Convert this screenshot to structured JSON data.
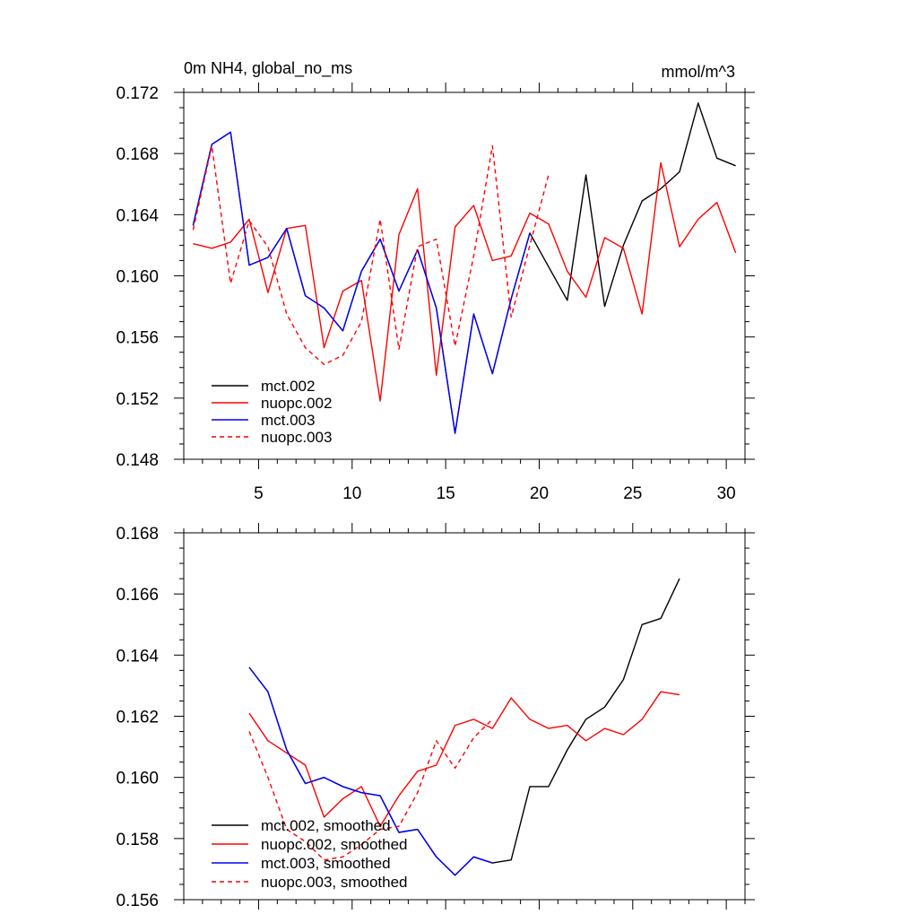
{
  "chart_data": [
    {
      "type": "line",
      "title": "0m NH4, global_no_ms",
      "units_label": "mmol/m^3",
      "xlabel": "",
      "ylabel": "",
      "xlim": [
        1,
        31
      ],
      "ylim": [
        0.148,
        0.172
      ],
      "yticks": [
        0.148,
        0.152,
        0.156,
        0.16,
        0.164,
        0.168,
        0.172
      ],
      "ytick_labels": [
        "0.148",
        "0.152",
        "0.156",
        "0.160",
        "0.164",
        "0.168",
        "0.172"
      ],
      "xticks": [
        5,
        10,
        15,
        20,
        25,
        30
      ],
      "xtick_labels": [
        "5",
        "10",
        "15",
        "20",
        "25",
        "30"
      ],
      "grid": false,
      "legend_position": "bottom-left",
      "series": [
        {
          "name": "mct.002",
          "color": "#000000",
          "dash": "solid",
          "x": [
            1.5,
            2.5,
            3.5,
            4.5,
            5.5,
            6.5,
            7.5,
            8.5,
            9.5,
            10.5,
            11.5,
            12.5,
            13.5,
            14.5,
            15.5,
            16.5,
            17.5,
            18.5,
            19.5,
            20.5,
            21.5,
            22.5,
            23.5,
            24.5,
            25.5,
            26.5,
            27.5,
            28.5,
            29.5,
            30.5
          ],
          "values": [
            0.1633,
            0.1686,
            0.1694,
            0.1607,
            0.1612,
            0.1631,
            0.1587,
            0.1579,
            0.1564,
            0.1603,
            0.1624,
            0.159,
            0.1617,
            0.1579,
            0.1497,
            0.1575,
            0.1536,
            0.1585,
            0.1628,
            0.1606,
            0.1584,
            0.1666,
            0.158,
            0.162,
            0.1649,
            0.1657,
            0.1668,
            0.1713,
            0.1677,
            0.1672
          ]
        },
        {
          "name": "nuopc.002",
          "color": "#ff0000",
          "dash": "solid",
          "x": [
            1.5,
            2.5,
            3.5,
            4.5,
            5.5,
            6.5,
            7.5,
            8.5,
            9.5,
            10.5,
            11.5,
            12.5,
            13.5,
            14.5,
            15.5,
            16.5,
            17.5,
            18.5,
            19.5,
            20.5,
            21.5,
            22.5,
            23.5,
            24.5,
            25.5,
            26.5,
            27.5,
            28.5,
            29.5,
            30.5
          ],
          "values": [
            0.1621,
            0.1618,
            0.1622,
            0.1637,
            0.1589,
            0.1631,
            0.1633,
            0.1553,
            0.159,
            0.1597,
            0.1518,
            0.1627,
            0.1657,
            0.1535,
            0.1632,
            0.1646,
            0.161,
            0.1613,
            0.1641,
            0.1634,
            0.1603,
            0.1586,
            0.1625,
            0.1618,
            0.1575,
            0.1674,
            0.1619,
            0.1637,
            0.1648,
            0.1615
          ]
        },
        {
          "name": "mct.003",
          "color": "#0000ff",
          "dash": "solid",
          "x": [
            1.5,
            2.5,
            3.5,
            4.5,
            5.5,
            6.5,
            7.5,
            8.5,
            9.5,
            10.5,
            11.5,
            12.5,
            13.5,
            14.5,
            15.5,
            16.5,
            17.5,
            18.5,
            19.5
          ],
          "values": [
            0.1633,
            0.1686,
            0.1694,
            0.1607,
            0.1612,
            0.1631,
            0.1587,
            0.1579,
            0.1564,
            0.1603,
            0.1624,
            0.159,
            0.1617,
            0.1579,
            0.1497,
            0.1575,
            0.1536,
            0.1585,
            0.1628
          ]
        },
        {
          "name": "nuopc.003",
          "color": "#ff0000",
          "dash": "dashed",
          "x": [
            1.5,
            2.5,
            3.5,
            4.5,
            5.5,
            6.5,
            7.5,
            8.5,
            9.5,
            10.5,
            11.5,
            12.5,
            13.5,
            14.5,
            15.5,
            16.5,
            17.5,
            18.5,
            19.5,
            20.5
          ],
          "values": [
            0.163,
            0.1685,
            0.1595,
            0.1636,
            0.1619,
            0.1575,
            0.1553,
            0.1542,
            0.1548,
            0.157,
            0.1637,
            0.1552,
            0.1619,
            0.1624,
            0.1554,
            0.1613,
            0.1685,
            0.1573,
            0.162,
            0.1666
          ]
        }
      ]
    },
    {
      "type": "line",
      "title": "",
      "xlabel": "",
      "ylabel": "",
      "xlim": [
        1,
        31
      ],
      "ylim": [
        0.156,
        0.168
      ],
      "yticks": [
        0.156,
        0.158,
        0.16,
        0.162,
        0.164,
        0.166,
        0.168
      ],
      "ytick_labels": [
        "0.156",
        "0.158",
        "0.160",
        "0.162",
        "0.164",
        "0.166",
        "0.168"
      ],
      "xticks": [
        5,
        10,
        15,
        20,
        25,
        30
      ],
      "xtick_labels": [],
      "grid": false,
      "legend_position": "bottom-left",
      "series": [
        {
          "name": "mct.002, smoothed",
          "color": "#000000",
          "dash": "solid",
          "x": [
            4.5,
            5.5,
            6.5,
            7.5,
            8.5,
            9.5,
            10.5,
            11.5,
            12.5,
            13.5,
            14.5,
            15.5,
            16.5,
            17.5,
            18.5,
            19.5,
            20.5,
            21.5,
            22.5,
            23.5,
            24.5,
            25.5,
            26.5,
            27.5
          ],
          "values": [
            0.1636,
            0.1628,
            0.1609,
            0.1598,
            0.16,
            0.1597,
            0.1595,
            0.1594,
            0.1582,
            0.1583,
            0.1574,
            0.1568,
            0.1574,
            0.1572,
            0.1573,
            0.1597,
            0.1597,
            0.1609,
            0.1619,
            0.1623,
            0.1632,
            0.165,
            0.1652,
            0.1665
          ]
        },
        {
          "name": "nuopc.002, smoothed",
          "color": "#ff0000",
          "dash": "solid",
          "x": [
            4.5,
            5.5,
            6.5,
            7.5,
            8.5,
            9.5,
            10.5,
            11.5,
            12.5,
            13.5,
            14.5,
            15.5,
            16.5,
            17.5,
            18.5,
            19.5,
            20.5,
            21.5,
            22.5,
            23.5,
            24.5,
            25.5,
            26.5,
            27.5
          ],
          "values": [
            0.1621,
            0.1612,
            0.1608,
            0.1604,
            0.1587,
            0.1593,
            0.1597,
            0.1584,
            0.1594,
            0.1602,
            0.1604,
            0.1617,
            0.1619,
            0.1616,
            0.1626,
            0.1619,
            0.1616,
            0.1617,
            0.1612,
            0.1616,
            0.1614,
            0.1619,
            0.1628,
            0.1627
          ]
        },
        {
          "name": "mct.003, smoothed",
          "color": "#0000ff",
          "dash": "solid",
          "x": [
            4.5,
            5.5,
            6.5,
            7.5,
            8.5,
            9.5,
            10.5,
            11.5,
            12.5,
            13.5,
            14.5,
            15.5,
            16.5,
            17.5
          ],
          "values": [
            0.1636,
            0.1628,
            0.1609,
            0.1598,
            0.16,
            0.1597,
            0.1595,
            0.1594,
            0.1582,
            0.1583,
            0.1574,
            0.1568,
            0.1574,
            0.1572
          ]
        },
        {
          "name": "nuopc.003, smoothed",
          "color": "#ff0000",
          "dash": "dashed",
          "x": [
            4.5,
            5.5,
            6.5,
            7.5,
            8.5,
            9.5,
            10.5,
            11.5,
            12.5,
            13.5,
            14.5,
            15.5,
            16.5,
            17.5
          ],
          "values": [
            0.1615,
            0.16,
            0.1583,
            0.1579,
            0.1573,
            0.1574,
            0.1578,
            0.1583,
            0.1584,
            0.1595,
            0.1612,
            0.1603,
            0.1613,
            0.1619
          ]
        }
      ]
    }
  ]
}
